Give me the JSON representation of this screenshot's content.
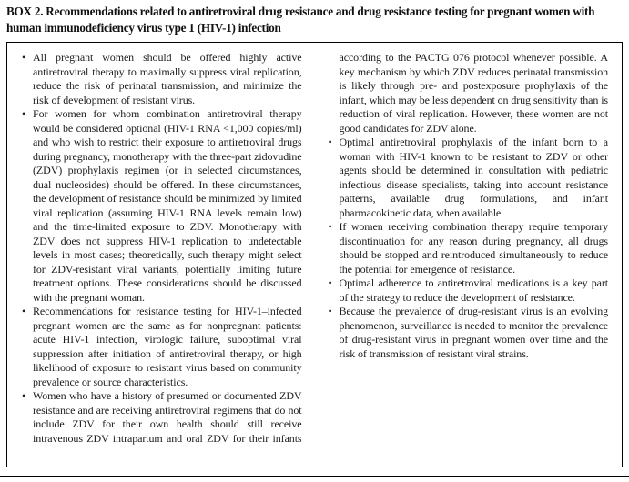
{
  "title": "BOX 2. Recommendations related to antiretroviral drug resistance and drug resistance testing for pregnant women with human immunodeficiency virus type 1 (HIV-1) infection",
  "bullets": [
    "All pregnant women should be offered highly active antiretroviral therapy to maximally suppress viral replication, reduce the risk of perinatal transmission, and minimize the risk of development of resistant virus.",
    "For women for whom combination antiretroviral therapy would be considered optional (HIV-1 RNA <1,000 copies/ml) and who wish to restrict their exposure to antiretroviral drugs during pregnancy, monotherapy with the three-part zidovudine (ZDV) prophylaxis regimen (or in selected circumstances, dual nucleosides) should be offered. In these circumstances, the development of resistance should be minimized by limited viral replication (assuming HIV-1 RNA levels remain low) and the time-limited exposure to ZDV. Monotherapy with ZDV does not suppress HIV-1 replication to undetectable levels in most cases; theoretically, such therapy might select for ZDV-resistant viral variants, potentially limiting future treatment options. These considerations should be discussed with the pregnant woman.",
    "Recommendations for resistance testing for HIV-1–infected pregnant women are the same as for nonpregnant patients: acute HIV-1 infection, virologic failure, suboptimal viral suppression after initiation of antiretroviral therapy, or high likelihood of exposure to resistant virus based on community prevalence or source characteristics.",
    "Women who have a history of presumed or documented ZDV resistance and are receiving antiretroviral regimens that do not include ZDV for their own health should still receive intravenous ZDV intrapartum and oral ZDV for their infants according to the PACTG 076 protocol whenever possible. A key mechanism by which ZDV reduces perinatal transmission is likely through pre- and postexposure prophylaxis of the infant, which may be less dependent on drug sensitivity than is reduction of viral replication. However, these women are not good candidates for ZDV alone.",
    "Optimal antiretroviral prophylaxis of the infant born to a woman with HIV-1 known to be resistant to ZDV or other agents should be determined in consultation with pediatric infectious disease specialists, taking into account resistance patterns, available drug formulations, and infant pharmacokinetic data, when available.",
    "If women receiving combination therapy require temporary discontinuation for any reason during pregnancy, all drugs should be stopped and reintroduced simultaneously to reduce the potential for emergence of resistance.",
    "Optimal adherence to antiretroviral medications is a key part of the strategy to reduce the development of resistance.",
    "Because the prevalence of drug-resistant virus is an evolving phenomenon, surveillance is needed to monitor the prevalence of drug-resistant virus in pregnant women over time and the risk of transmission of resistant viral strains."
  ]
}
